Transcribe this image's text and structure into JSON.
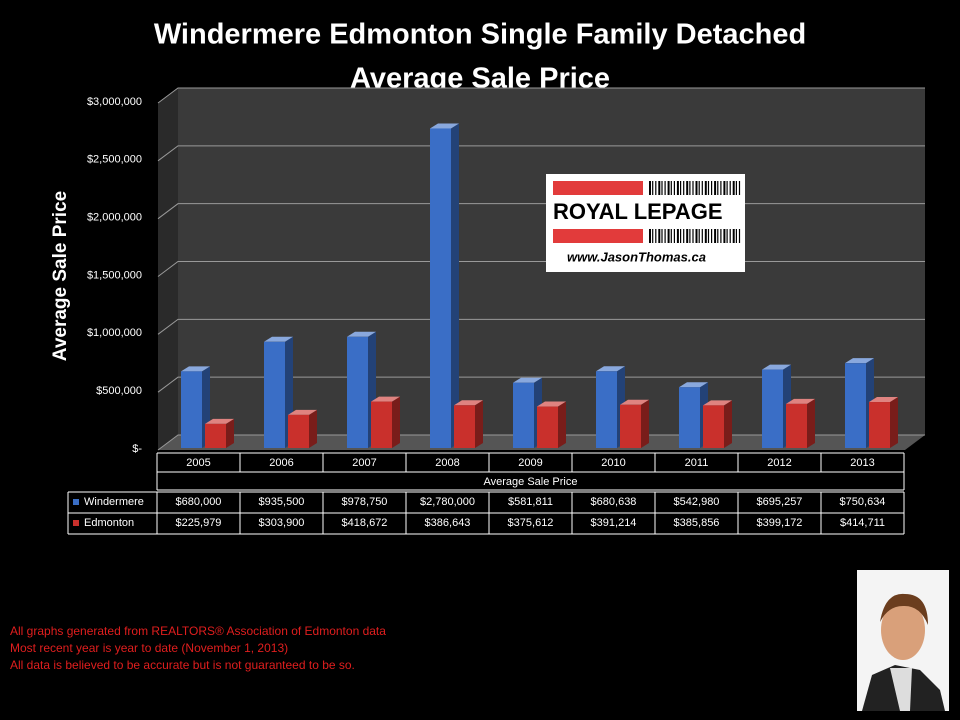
{
  "chart_data": {
    "type": "bar3d",
    "title": "Windermere Edmonton Single Family Detached",
    "subtitle": "Average Sale Price",
    "y_label": "Average Sale Price",
    "x_label": "Average Sale Price",
    "categories": [
      "2005",
      "2006",
      "2007",
      "2008",
      "2009",
      "2010",
      "2011",
      "2012",
      "2013"
    ],
    "series": [
      {
        "name": "Windermere",
        "color": "#3a6ec6",
        "values": [
          680000,
          935500,
          978750,
          2780000,
          581811,
          680638,
          542980,
          695257,
          750634
        ],
        "value_labels": [
          "$680,000",
          "$935,500",
          "$978,750",
          "$2,780,000",
          "$581,811",
          "$680,638",
          "$542,980",
          "$695,257",
          "$750,634"
        ]
      },
      {
        "name": "Edmonton",
        "color": "#c9302c",
        "values": [
          225979,
          303900,
          418672,
          386643,
          375612,
          391214,
          385856,
          399172,
          414711
        ],
        "value_labels": [
          "$225,979",
          "$303,900",
          "$418,672",
          "$386,643",
          "$375,612",
          "$391,214",
          "$385,856",
          "$399,172",
          "$414,711"
        ]
      }
    ],
    "ylim": [
      0,
      3000000
    ],
    "yticks": [
      {
        "value": 0,
        "label": "$-"
      },
      {
        "value": 500000,
        "label": "$500,000"
      },
      {
        "value": 1000000,
        "label": "$1,000,000"
      },
      {
        "value": 1500000,
        "label": "$1,500,000"
      },
      {
        "value": 2000000,
        "label": "$2,000,000"
      },
      {
        "value": 2500000,
        "label": "$2,500,000"
      },
      {
        "value": 3000000,
        "label": "$3,000,000"
      }
    ],
    "grid": true
  },
  "logo": {
    "brand": "ROYAL LEPAGE",
    "url": "www.JasonThomas.ca"
  },
  "notes": [
    "All graphs generated from REALTORS® Association of Edmonton data",
    "Most recent year is year to date (November 1, 2013)",
    "All data is believed to be accurate but is not guaranteed to be so."
  ]
}
